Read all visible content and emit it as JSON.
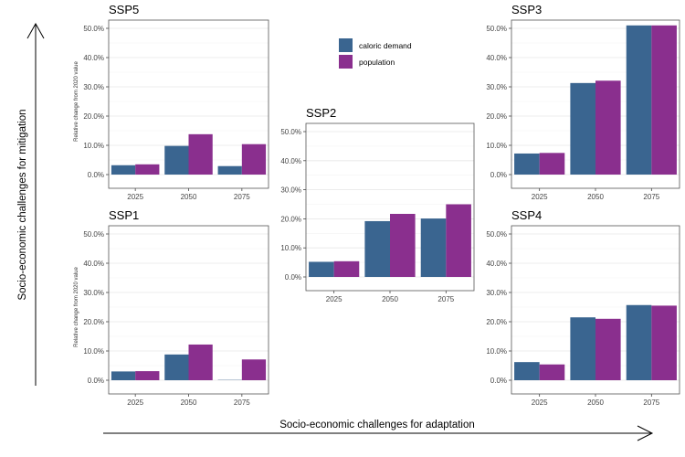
{
  "figure": {
    "x_arrow_label": "Socio-economic challenges for adaptation",
    "y_arrow_label": "Socio-economic challenges for mitigation"
  },
  "colors": {
    "caloric_demand": "#3a6590",
    "population": "#8a2f8e",
    "grid": "#e6e6e6",
    "frame": "#555555"
  },
  "legend": {
    "items": [
      {
        "label": "caloric demand",
        "color": "#3a6590"
      },
      {
        "label": "population",
        "color": "#8a2f8e"
      }
    ]
  },
  "chart_data": [
    {
      "type": "bar",
      "title": "SSP5",
      "categories": [
        "2025",
        "2050",
        "2075"
      ],
      "series": [
        {
          "name": "caloric demand",
          "values": [
            3.2,
            9.8,
            2.9
          ]
        },
        {
          "name": "population",
          "values": [
            3.5,
            13.8,
            10.4
          ]
        }
      ],
      "ylabel": "Relative change from 2020 value",
      "yticks": [
        "0.0%",
        "10.0%",
        "20.0%",
        "30.0%",
        "40.0%",
        "50.0%"
      ],
      "ylim": [
        0,
        50
      ]
    },
    {
      "type": "bar",
      "title": "SSP1",
      "categories": [
        "2025",
        "2050",
        "2075"
      ],
      "series": [
        {
          "name": "caloric demand",
          "values": [
            3.0,
            8.8,
            0.1
          ]
        },
        {
          "name": "population",
          "values": [
            3.1,
            12.2,
            7.1
          ]
        }
      ],
      "ylabel": "Relative change from 2020 value",
      "yticks": [
        "0.0%",
        "10.0%",
        "20.0%",
        "30.0%",
        "40.0%",
        "50.0%"
      ],
      "ylim": [
        0,
        50
      ]
    },
    {
      "type": "bar",
      "title": "SSP2",
      "categories": [
        "2025",
        "2050",
        "2075"
      ],
      "series": [
        {
          "name": "caloric demand",
          "values": [
            5.2,
            19.2,
            20.1
          ]
        },
        {
          "name": "population",
          "values": [
            5.4,
            21.7,
            25.0
          ]
        }
      ],
      "ylabel": "",
      "yticks": [
        "0.0%",
        "10.0%",
        "20.0%",
        "30.0%",
        "40.0%",
        "50.0%"
      ],
      "ylim": [
        0,
        50
      ]
    },
    {
      "type": "bar",
      "title": "SSP3",
      "categories": [
        "2025",
        "2050",
        "2075"
      ],
      "series": [
        {
          "name": "caloric demand",
          "values": [
            7.2,
            31.3,
            51.0
          ]
        },
        {
          "name": "population",
          "values": [
            7.4,
            32.1,
            51.0
          ]
        }
      ],
      "ylabel": "",
      "yticks": [
        "0.0%",
        "10.0%",
        "20.0%",
        "30.0%",
        "40.0%",
        "50.0%"
      ],
      "ylim": [
        0,
        50
      ]
    },
    {
      "type": "bar",
      "title": "SSP4",
      "categories": [
        "2025",
        "2050",
        "2075"
      ],
      "series": [
        {
          "name": "caloric demand",
          "values": [
            6.2,
            21.5,
            25.7
          ]
        },
        {
          "name": "population",
          "values": [
            5.4,
            21.0,
            25.5
          ]
        }
      ],
      "ylabel": "",
      "yticks": [
        "0.0%",
        "10.0%",
        "20.0%",
        "30.0%",
        "40.0%",
        "50.0%"
      ],
      "ylim": [
        0,
        50
      ]
    }
  ]
}
